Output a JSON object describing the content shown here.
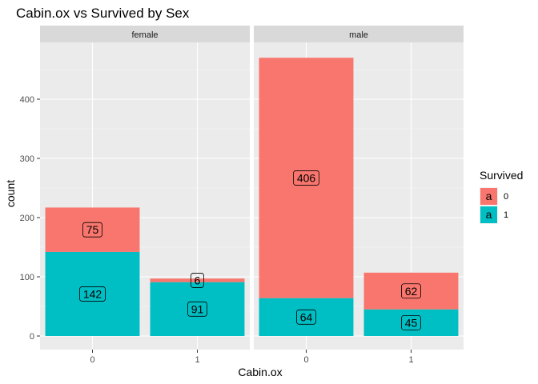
{
  "chart_data": {
    "type": "bar",
    "stacked": true,
    "title": "Cabin.ox vs Survived by Sex",
    "xlabel": "Cabin.ox",
    "ylabel": "count",
    "facets": [
      "female",
      "male"
    ],
    "categories": [
      "0",
      "1"
    ],
    "ylim": [
      0,
      470
    ],
    "yticks": [
      0,
      100,
      200,
      300,
      400
    ],
    "grid": true,
    "legend": {
      "title": "Survived",
      "position": "right",
      "key_glyph": "a",
      "entries": [
        {
          "label": "0",
          "color": "#F8766D"
        },
        {
          "label": "1",
          "color": "#00BFC4"
        }
      ]
    },
    "series": [
      {
        "name": "0",
        "color": "#F8766D",
        "values": {
          "female": [
            75,
            6
          ],
          "male": [
            406,
            62
          ]
        }
      },
      {
        "name": "1",
        "color": "#00BFC4",
        "values": {
          "female": [
            142,
            91
          ],
          "male": [
            64,
            45
          ]
        }
      }
    ]
  }
}
